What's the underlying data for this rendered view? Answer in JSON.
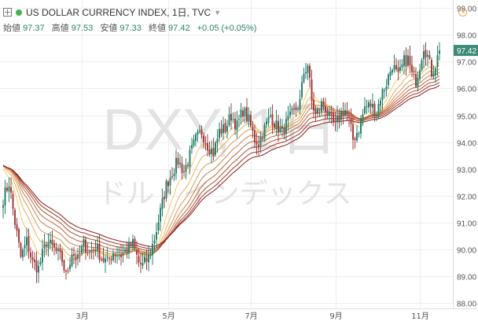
{
  "header": {
    "symbol_title": "US DOLLAR CURRENCY INDEX, 1日, TVC",
    "ohlc": [
      {
        "label": "始値",
        "value": "97.37"
      },
      {
        "label": "高値",
        "value": "97.53"
      },
      {
        "label": "安値",
        "value": "97.33"
      },
      {
        "label": "終値",
        "value": "97.42"
      }
    ],
    "change": "+0.05 (+0.05%)"
  },
  "watermark": {
    "symbol": "DXY, 1日",
    "name": "ドル・インデックス"
  },
  "colors": {
    "up": "#26806b",
    "down": "#a33d3d",
    "grid": "#eeeeee",
    "price_label_bg": "#3d8a78",
    "ribbon_start": "#f7c96b",
    "ribbon_end": "#8b1a1a"
  },
  "chart_data": {
    "type": "candlestick",
    "title": "US DOLLAR CURRENCY INDEX, 1日, TVC",
    "y_ticks": [
      "99.00",
      "98.00",
      "97.00",
      "96.00",
      "95.00",
      "94.00",
      "93.00",
      "92.00",
      "91.00",
      "90.00",
      "89.00",
      "88.00"
    ],
    "ylim": [
      87.8,
      99.3
    ],
    "x_ticks": [
      {
        "label": "3月",
        "index": 40
      },
      {
        "label": "5月",
        "index": 84
      },
      {
        "label": "7月",
        "index": 126
      },
      {
        "label": "9月",
        "index": 169
      },
      {
        "label": "11月",
        "index": 212
      }
    ],
    "last_price": "97.42",
    "grid": true,
    "moving_average_ribbon": {
      "count": 8
    },
    "anchors": [
      [
        0,
        91.9
      ],
      [
        3,
        92.5
      ],
      [
        6,
        91.0
      ],
      [
        9,
        89.7
      ],
      [
        12,
        90.3
      ],
      [
        15,
        89.5
      ],
      [
        18,
        89.3
      ],
      [
        22,
        90.3
      ],
      [
        26,
        90.0
      ],
      [
        30,
        89.6
      ],
      [
        32,
        89.0
      ],
      [
        35,
        89.9
      ],
      [
        38,
        89.6
      ],
      [
        41,
        90.2
      ],
      [
        44,
        89.9
      ],
      [
        47,
        90.1
      ],
      [
        50,
        89.7
      ],
      [
        53,
        89.5
      ],
      [
        56,
        89.9
      ],
      [
        60,
        89.8
      ],
      [
        63,
        90.0
      ],
      [
        66,
        90.2
      ],
      [
        69,
        89.5
      ],
      [
        71,
        89.4
      ],
      [
        74,
        89.7
      ],
      [
        77,
        90.4
      ],
      [
        80,
        91.4
      ],
      [
        83,
        92.4
      ],
      [
        86,
        92.9
      ],
      [
        89,
        93.3
      ],
      [
        92,
        92.9
      ],
      [
        95,
        93.5
      ],
      [
        98,
        94.1
      ],
      [
        101,
        94.4
      ],
      [
        104,
        93.9
      ],
      [
        107,
        93.6
      ],
      [
        110,
        94.4
      ],
      [
        113,
        94.5
      ],
      [
        116,
        95.0
      ],
      [
        119,
        94.6
      ],
      [
        122,
        95.2
      ],
      [
        125,
        94.8
      ],
      [
        128,
        94.1
      ],
      [
        130,
        94.0
      ],
      [
        133,
        94.5
      ],
      [
        136,
        95.0
      ],
      [
        139,
        94.6
      ],
      [
        142,
        94.4
      ],
      [
        145,
        94.8
      ],
      [
        148,
        95.1
      ],
      [
        151,
        95.5
      ],
      [
        153,
        96.6
      ],
      [
        155,
        96.9
      ],
      [
        157,
        95.5
      ],
      [
        159,
        95.0
      ],
      [
        162,
        95.4
      ],
      [
        164,
        95.3
      ],
      [
        166,
        94.9
      ],
      [
        169,
        94.6
      ],
      [
        172,
        95.1
      ],
      [
        174,
        95.2
      ],
      [
        176,
        94.8
      ],
      [
        178,
        94.1
      ],
      [
        181,
        94.5
      ],
      [
        184,
        95.3
      ],
      [
        187,
        95.4
      ],
      [
        190,
        95.1
      ],
      [
        192,
        95.7
      ],
      [
        195,
        96.2
      ],
      [
        198,
        96.9
      ],
      [
        201,
        96.4
      ],
      [
        204,
        97.0
      ],
      [
        206,
        97.1
      ],
      [
        208,
        96.5
      ],
      [
        210,
        96.3
      ],
      [
        212,
        96.9
      ],
      [
        214,
        97.6
      ],
      [
        216,
        97.2
      ],
      [
        218,
        96.6
      ],
      [
        220,
        96.9
      ],
      [
        222,
        97.4
      ]
    ]
  }
}
